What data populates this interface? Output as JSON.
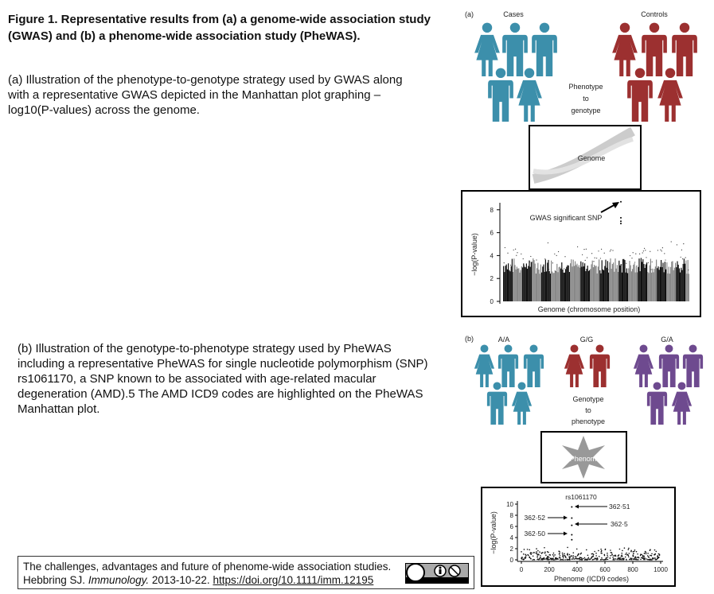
{
  "header": {
    "title": "Figure 1. Representative results from (a) a genome-wide association study (GWAS) and (b) a phenome-wide association study (PheWAS)."
  },
  "paragraphs": [
    "(a) Illustration of the phenotype-to-genotype strategy used by GWAS along with a representative GWAS depicted in the Manhattan plot graphing –log10(P-values) across the genome.",
    "(b) Illustration of the genotype-to-phenotype strategy used by PheWAS including a representative PheWAS for single nucleotide polymorphism (SNP) rs1061170, a SNP known to be associated with age-related macular degeneration (AMD).5 The AMD ICD9 codes are highlighted on the PheWAS Manhattan plot."
  ],
  "citation": {
    "line1": "The challenges, advantages and future of phenome-wide association studies.",
    "authors": "Hebbring SJ.",
    "journal": "Immunology.",
    "date": "2013-10-22.",
    "link": "https://doi.org/10.1111/imm.12195"
  },
  "panel_a": {
    "label": "(a)",
    "groups": [
      "Cases",
      "Controls"
    ],
    "arrow_text": [
      "Phenotype",
      "to",
      "genotype"
    ],
    "box_label": "Genome",
    "plot": {
      "yaxis": "−log(P-value)",
      "yticks": [
        0,
        2,
        4,
        6,
        8
      ],
      "annotation": "GWAS significant SNP",
      "xaxis": "Genome (chromosome position)"
    }
  },
  "panel_b": {
    "label": "(b)",
    "groups": [
      "A/A",
      "G/G",
      "G/A"
    ],
    "arrow_text": [
      "Genotype",
      "to",
      "phenotype"
    ],
    "box_label": "Phenome",
    "plot": {
      "title": "rs1061170",
      "yaxis": "−log(P-value)",
      "yticks": [
        0,
        2,
        4,
        6,
        8,
        10
      ],
      "xticks": [
        0,
        200,
        400,
        600,
        800,
        1000
      ],
      "annotations": [
        "362·51",
        "362·52",
        "362·5",
        "362·50"
      ],
      "xaxis": "Phenome (ICD9 codes)"
    }
  }
}
